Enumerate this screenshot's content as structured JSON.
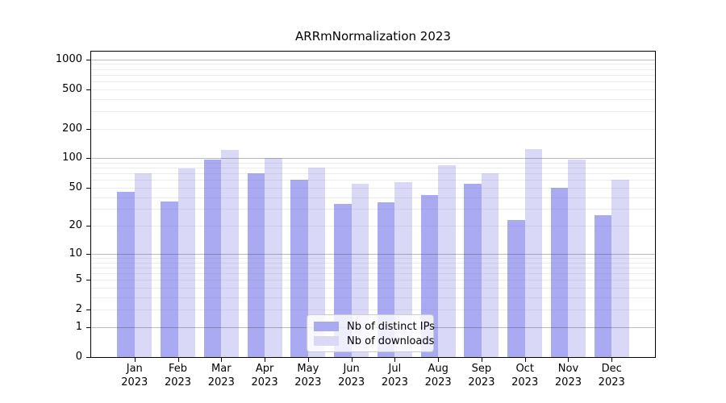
{
  "title": "ARRmNormalization 2023",
  "colors": {
    "distinct_ips": "#aaaaf2",
    "downloads": "#d9d9f7",
    "axis": "#000000",
    "legend_border": "#cccccc"
  },
  "legend": {
    "items": [
      {
        "key": "distinct_ips",
        "label": "Nb of distinct IPs"
      },
      {
        "key": "downloads",
        "label": "Nb of downloads"
      }
    ]
  },
  "chart_data": {
    "type": "bar",
    "title": "ARRmNormalization 2023",
    "categories": [
      "Jan",
      "Feb",
      "Mar",
      "Apr",
      "May",
      "Jun",
      "Jul",
      "Aug",
      "Sep",
      "Oct",
      "Nov",
      "Dec"
    ],
    "category_year": "2023",
    "series": [
      {
        "name": "Nb of distinct IPs",
        "color_key": "distinct_ips",
        "values": [
          45,
          36,
          97,
          70,
          60,
          34,
          35,
          42,
          55,
          23,
          50,
          26
        ]
      },
      {
        "name": "Nb of downloads",
        "color_key": "downloads",
        "values": [
          70,
          78,
          121,
          100,
          80,
          55,
          57,
          85,
          70,
          124,
          96,
          60
        ]
      }
    ],
    "xlabel": "",
    "ylabel": "",
    "yscale": "log10(1+v)",
    "ylim": [
      0,
      1200
    ],
    "yticks": [
      0,
      1,
      2,
      5,
      10,
      20,
      50,
      100,
      200,
      500,
      1000
    ],
    "major_grid_values": [
      1,
      10,
      100,
      1000
    ],
    "grid": true,
    "legend_position": "lower center"
  }
}
